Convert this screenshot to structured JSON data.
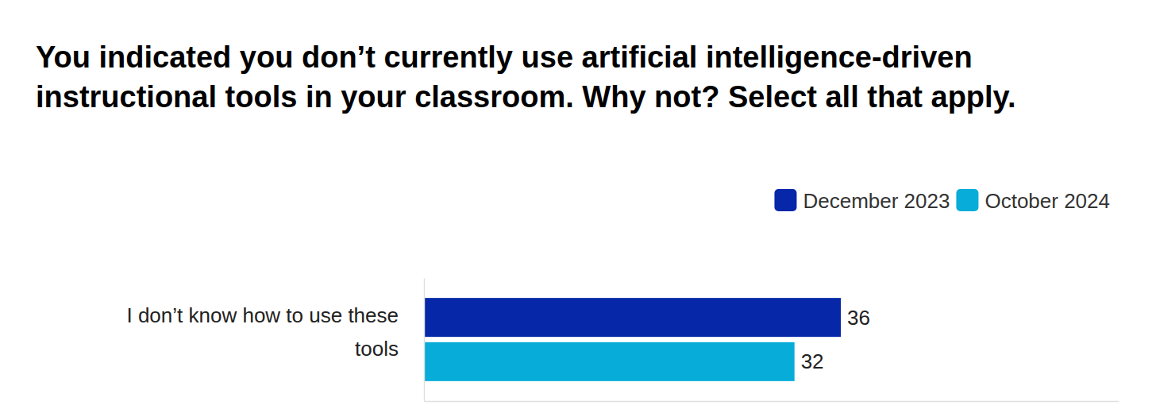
{
  "chart_data": {
    "type": "bar",
    "orientation": "horizontal",
    "title": "You indicated you don’t currently use artificial intelligence-driven instructional tools in your classroom. Why not? Select all that apply.",
    "categories": [
      "I don’t know how to use these tools"
    ],
    "series": [
      {
        "name": "December 2023",
        "color": "#0527a8",
        "values": [
          36
        ]
      },
      {
        "name": "October 2024",
        "color": "#07acd9",
        "values": [
          32
        ]
      }
    ],
    "xlim": [
      0,
      60
    ],
    "tick_labels": false,
    "data_labels": true,
    "legend": "top-right",
    "grid": false
  }
}
